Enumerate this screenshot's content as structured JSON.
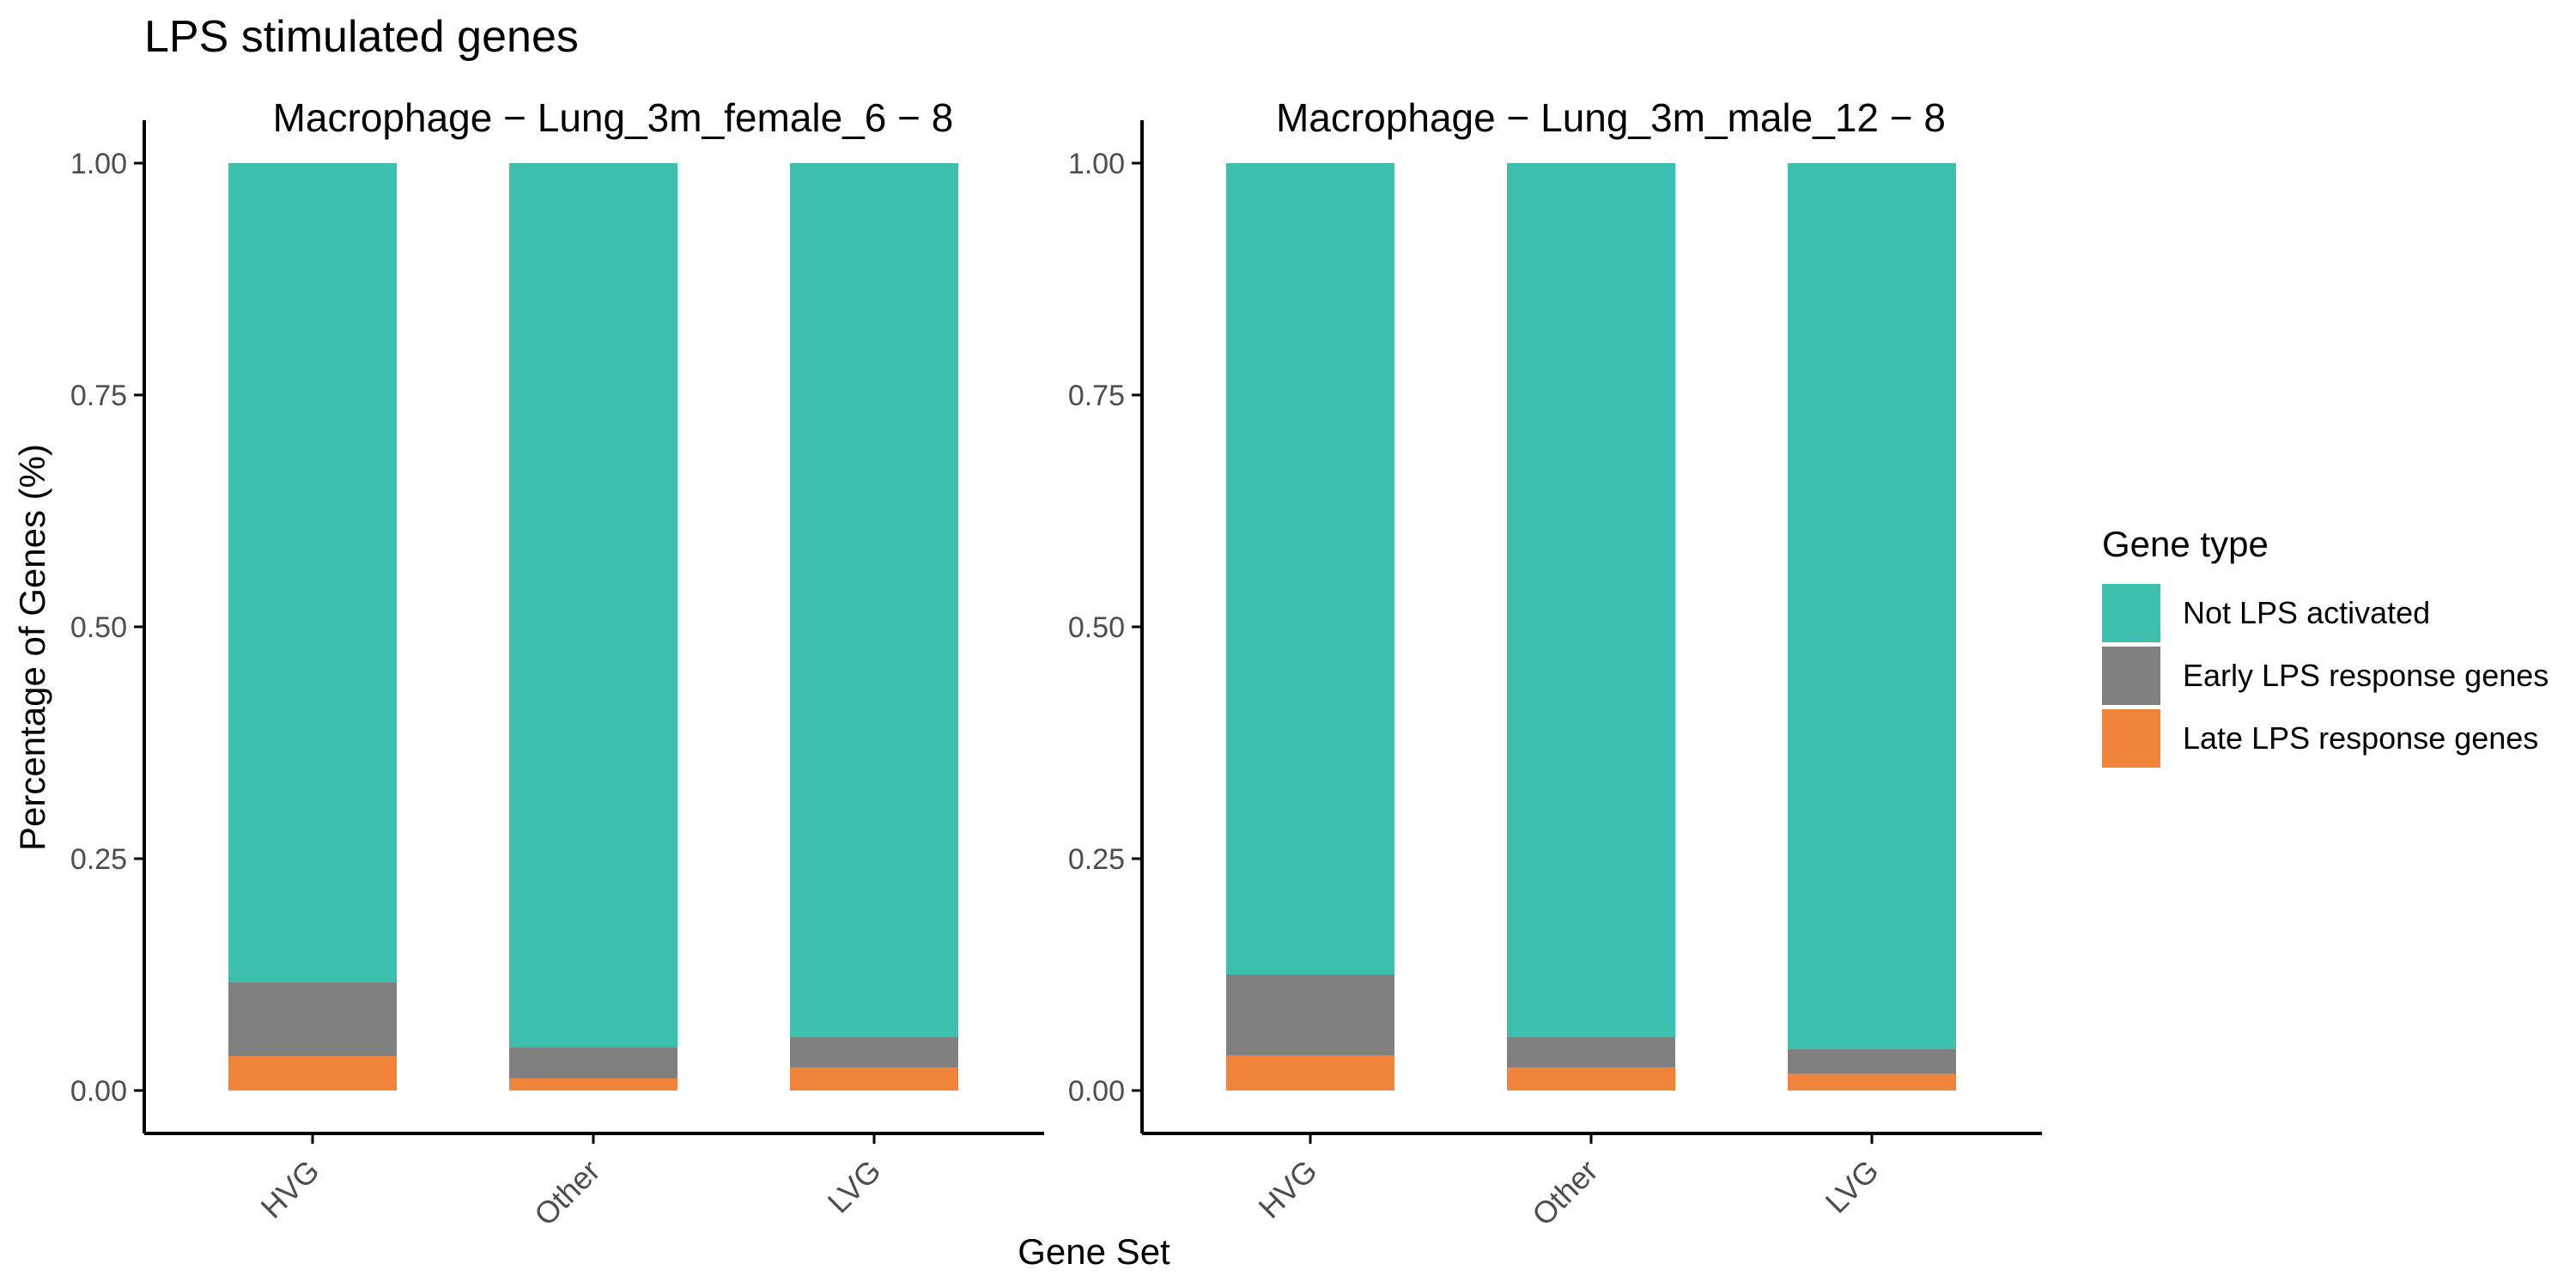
{
  "title": "LPS stimulated genes",
  "xlabel": "Gene Set",
  "ylabel": "Percentage of Genes (%)",
  "colors": {
    "Not LPS activated": "#3dbfae",
    "Early LPS response genes": "#808080",
    "Late LPS response genes": "#f0843a"
  },
  "legend": {
    "title": "Gene type",
    "placement": "right",
    "items": [
      "Not LPS activated",
      "Early LPS response genes",
      "Late LPS response genes"
    ]
  },
  "chart_data": [
    {
      "type": "bar",
      "stacked": true,
      "title": "Macrophage − Lung_3m_female_6 − 8",
      "categories": [
        "HVG",
        "Other",
        "LVG"
      ],
      "ylim": [
        0,
        1
      ],
      "yticks": [
        "0.00",
        "0.25",
        "0.50",
        "0.75",
        "1.00"
      ],
      "series": [
        {
          "name": "Late LPS response genes",
          "values": [
            0.037,
            0.013,
            0.025
          ]
        },
        {
          "name": "Early LPS response genes",
          "values": [
            0.08,
            0.034,
            0.033
          ]
        },
        {
          "name": "Not LPS activated",
          "values": [
            0.883,
            0.953,
            0.942
          ]
        }
      ]
    },
    {
      "type": "bar",
      "stacked": true,
      "title": "Macrophage − Lung_3m_male_12 − 8",
      "categories": [
        "HVG",
        "Other",
        "LVG"
      ],
      "ylim": [
        0,
        1
      ],
      "yticks": [
        "0.00",
        "0.25",
        "0.50",
        "0.75",
        "1.00"
      ],
      "series": [
        {
          "name": "Late LPS response genes",
          "values": [
            0.038,
            0.025,
            0.018
          ]
        },
        {
          "name": "Early LPS response genes",
          "values": [
            0.087,
            0.033,
            0.027
          ]
        },
        {
          "name": "Not LPS activated",
          "values": [
            0.875,
            0.942,
            0.955
          ]
        }
      ]
    }
  ]
}
